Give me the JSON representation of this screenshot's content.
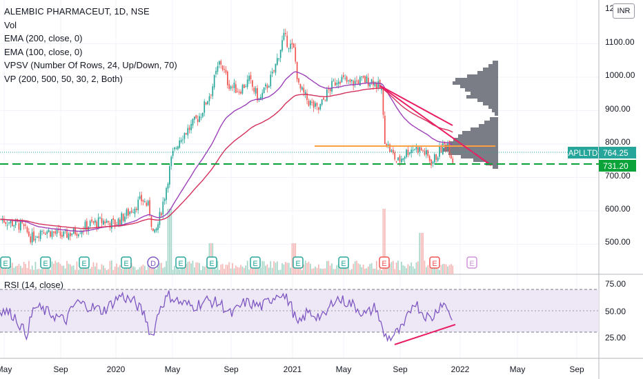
{
  "legend": {
    "title": "ALEMBIC PHARMACEUT, 1D, NSE",
    "lines": [
      "Vol",
      "EMA (200, close, 0)",
      "EMA (100, close, 0)",
      "VPSV (Number Of Rows, 24, Up/Down, 70)",
      "VP (200, 500, 50, 30, 2, Both)"
    ]
  },
  "currency_badge": "INR",
  "price_axis": {
    "top_partial": "1200.00",
    "ticks": [
      "1100.00",
      "1000.00",
      "900.00",
      "800.00",
      "700.00",
      "600.00",
      "500.00"
    ]
  },
  "tags": {
    "symbol": "APLLTD",
    "last_price": "764.25",
    "support_price": "731.20",
    "symbol_color": "#26a69a",
    "support_color": "#0aa33a"
  },
  "rsi": {
    "label": "RSI (14, close)",
    "ticks": [
      "75.00",
      "50.00",
      "25.00"
    ]
  },
  "time_axis": [
    "May",
    "Sep",
    "2020",
    "May",
    "Sep",
    "2021",
    "May",
    "Sep",
    "2022",
    "May",
    "Sep"
  ],
  "event_markers": [
    "E",
    "E",
    "E",
    "E",
    "D",
    "E",
    "E",
    "E",
    "E",
    "E",
    "E",
    "E",
    "E"
  ],
  "colors": {
    "up": "#26a69a",
    "down": "#ef5350",
    "ema200": "#d32f5a",
    "ema100": "#9c3fb8",
    "rsi_line": "#7e57c2",
    "rsi_band": "#ede7f6",
    "profile": "#7a7d85",
    "poc": "#ff9f43",
    "trend": "#e91e63"
  }
}
